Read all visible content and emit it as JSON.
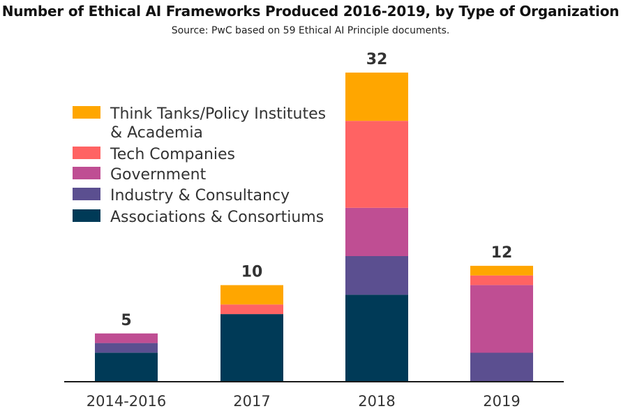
{
  "chart_data": {
    "type": "bar",
    "stacked": true,
    "title": "Number of Ethical AI Frameworks Produced 2016-2019, by Type of Organization",
    "subtitle": "Source: PwC based on 59 Ethical AI Principle documents.",
    "xlabel": "",
    "ylabel": "",
    "ylim": [
      0,
      32
    ],
    "grid": false,
    "legend_position": "top-left",
    "categories": [
      "2014-2016",
      "2017",
      "2018",
      "2019"
    ],
    "totals": [
      5,
      10,
      32,
      12
    ],
    "series": [
      {
        "name": "Associations & Consortiums",
        "color": "#003a57",
        "values": [
          3,
          7,
          9,
          0
        ]
      },
      {
        "name": "Industry & Consultancy",
        "color": "#5b4f90",
        "values": [
          1,
          0,
          4,
          3
        ]
      },
      {
        "name": "Government",
        "color": "#bf4e93",
        "values": [
          1,
          0,
          5,
          7
        ]
      },
      {
        "name": "Tech Companies",
        "color": "#ff6363",
        "values": [
          0,
          1,
          9,
          1
        ]
      },
      {
        "name": "Think Tanks/Policy Institutes & Academia",
        "color": "#ffa600",
        "values": [
          0,
          2,
          5,
          1
        ]
      }
    ],
    "legend_order": [
      4,
      3,
      2,
      1,
      0
    ],
    "legend_lines": [
      [
        "Think Tanks/Policy Institutes",
        "& Academia"
      ],
      [
        "Tech Companies"
      ],
      [
        "Government"
      ],
      [
        "Industry & Consultancy"
      ],
      [
        "Associations & Consortiums"
      ]
    ]
  }
}
